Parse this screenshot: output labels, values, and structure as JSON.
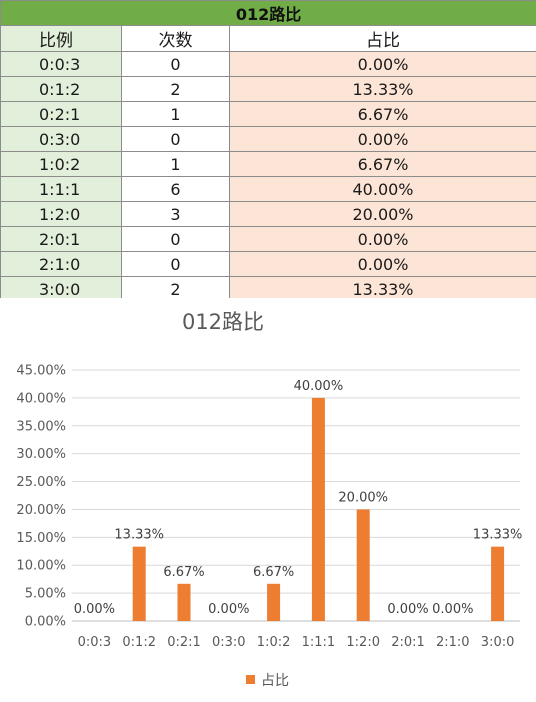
{
  "table": {
    "title": "012路比",
    "headers": {
      "ratio": "比例",
      "count": "次数",
      "pct": "占比"
    },
    "rows": [
      {
        "ratio": "0:0:3",
        "count": "0",
        "pct": "0.00%"
      },
      {
        "ratio": "0:1:2",
        "count": "2",
        "pct": "13.33%"
      },
      {
        "ratio": "0:2:1",
        "count": "1",
        "pct": "6.67%"
      },
      {
        "ratio": "0:3:0",
        "count": "0",
        "pct": "0.00%"
      },
      {
        "ratio": "1:0:2",
        "count": "1",
        "pct": "6.67%"
      },
      {
        "ratio": "1:1:1",
        "count": "6",
        "pct": "40.00%"
      },
      {
        "ratio": "1:2:0",
        "count": "3",
        "pct": "20.00%"
      },
      {
        "ratio": "2:0:1",
        "count": "0",
        "pct": "0.00%"
      },
      {
        "ratio": "2:1:0",
        "count": "0",
        "pct": "0.00%"
      },
      {
        "ratio": "3:0:0",
        "count": "2",
        "pct": "13.33%"
      }
    ]
  },
  "colors": {
    "title_bg": "#70ad47",
    "ratio_bg": "#e2efda",
    "pct_bg": "#fce4d6",
    "bar": "#ed7d31",
    "grid": "#d9d9d9"
  },
  "chart_data": {
    "type": "bar",
    "title": "012路比",
    "categories": [
      "0:0:3",
      "0:1:2",
      "0:2:1",
      "0:3:0",
      "1:0:2",
      "1:1:1",
      "1:2:0",
      "2:0:1",
      "2:1:0",
      "3:0:0"
    ],
    "series": [
      {
        "name": "占比",
        "values": [
          0,
          13.33,
          6.67,
          0,
          6.67,
          40.0,
          20.0,
          0,
          0,
          13.33
        ]
      }
    ],
    "data_labels": [
      "0.00%",
      "13.33%",
      "6.67%",
      "0.00%",
      "6.67%",
      "40.00%",
      "20.00%",
      "0.00%",
      "0.00%",
      "13.33%"
    ],
    "y_ticks": [
      "0.00%",
      "5.00%",
      "10.00%",
      "15.00%",
      "20.00%",
      "25.00%",
      "30.00%",
      "35.00%",
      "40.00%",
      "45.00%"
    ],
    "ylim": [
      0,
      45
    ],
    "xlabel": "",
    "ylabel": "",
    "grid": true,
    "legend_position": "bottom"
  }
}
